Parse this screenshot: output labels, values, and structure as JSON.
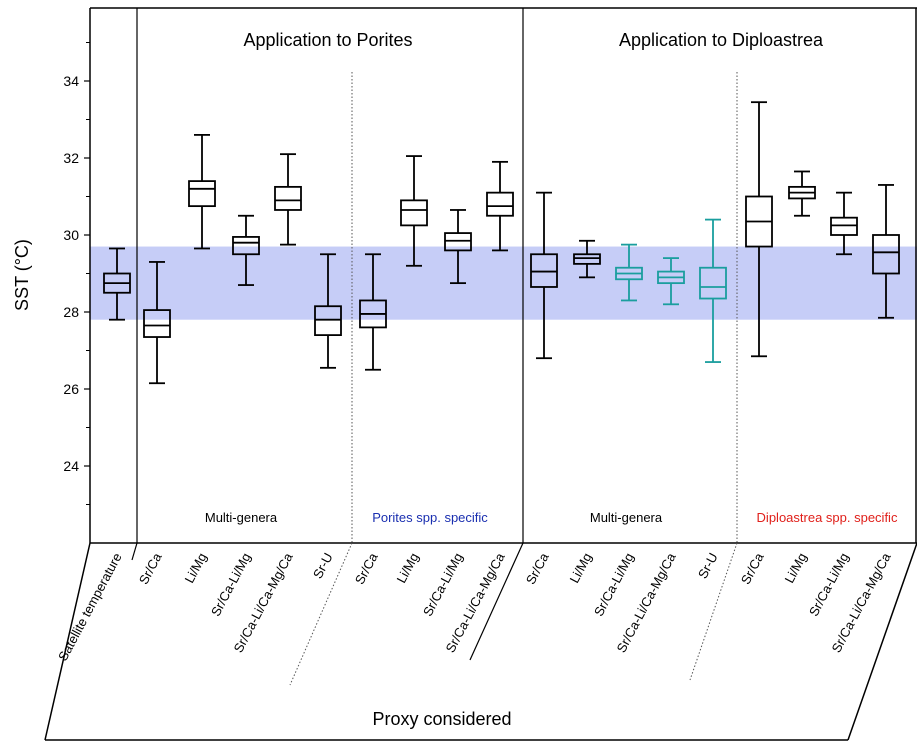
{
  "chart_data": {
    "type": "box",
    "ylabel": "SST (°C)",
    "xlabel": "Proxy considered",
    "ylim": [
      22.5,
      36
    ],
    "yticks": [
      24,
      26,
      28,
      30,
      32,
      34
    ],
    "band": {
      "low": 27.8,
      "high": 29.7,
      "color": "#c6cdf7"
    },
    "section_titles": [
      "Application to  Porites",
      "Application to  Diploastrea"
    ],
    "group_labels": [
      {
        "text": "Multi-genera",
        "color": "#000000"
      },
      {
        "text": "Porites spp. specific",
        "color": "#1a2fb0"
      },
      {
        "text": "Multi-genera",
        "color": "#000000"
      },
      {
        "text": "Diploastrea spp. specific",
        "color": "#e0201b"
      }
    ],
    "categories": [
      "Satellite temperature",
      "Sr/Ca",
      "Li/Mg",
      "Sr/Ca-Li/Mg",
      "Sr/Ca-Li/Ca-Mg/Ca",
      "Sr-U",
      "Sr/Ca",
      "Li/Mg",
      "Sr/Ca-Li/Mg",
      "Sr/Ca-Li/Ca-Mg/Ca",
      "Sr/Ca",
      "Li/Mg",
      "Sr/Ca-Li/Mg",
      "Sr/Ca-Li/Ca-Mg/Ca",
      "Sr-U",
      "Sr/Ca",
      "Li/Mg",
      "Sr/Ca-Li/Mg",
      "Sr/Ca-Li/Ca-Mg/Ca"
    ],
    "boxes": [
      {
        "min": 27.8,
        "q1": 28.5,
        "median": 28.75,
        "q3": 29.0,
        "max": 29.65,
        "color": "#000000"
      },
      {
        "min": 26.15,
        "q1": 27.35,
        "median": 27.65,
        "q3": 28.05,
        "max": 29.3,
        "color": "#000000"
      },
      {
        "min": 29.65,
        "q1": 30.75,
        "median": 31.2,
        "q3": 31.4,
        "max": 32.6,
        "color": "#000000"
      },
      {
        "min": 28.7,
        "q1": 29.5,
        "median": 29.8,
        "q3": 29.95,
        "max": 30.5,
        "color": "#000000"
      },
      {
        "min": 29.75,
        "q1": 30.65,
        "median": 30.9,
        "q3": 31.25,
        "max": 32.1,
        "color": "#000000"
      },
      {
        "min": 26.55,
        "q1": 27.4,
        "median": 27.8,
        "q3": 28.15,
        "max": 29.5,
        "color": "#000000"
      },
      {
        "min": 26.5,
        "q1": 27.6,
        "median": 27.95,
        "q3": 28.3,
        "max": 29.5,
        "color": "#000000"
      },
      {
        "min": 29.2,
        "q1": 30.25,
        "median": 30.65,
        "q3": 30.9,
        "max": 32.05,
        "color": "#000000"
      },
      {
        "min": 28.75,
        "q1": 29.6,
        "median": 29.85,
        "q3": 30.05,
        "max": 30.65,
        "color": "#000000"
      },
      {
        "min": 29.6,
        "q1": 30.5,
        "median": 30.75,
        "q3": 31.1,
        "max": 31.9,
        "color": "#000000"
      },
      {
        "min": 26.8,
        "q1": 28.65,
        "median": 29.05,
        "q3": 29.5,
        "max": 31.1,
        "color": "#000000"
      },
      {
        "min": 28.9,
        "q1": 29.25,
        "median": 29.4,
        "q3": 29.5,
        "max": 29.85,
        "color": "#000000"
      },
      {
        "min": 28.3,
        "q1": 28.85,
        "median": 29.0,
        "q3": 29.15,
        "max": 29.75,
        "color": "#1a9e9e"
      },
      {
        "min": 28.2,
        "q1": 28.75,
        "median": 28.9,
        "q3": 29.05,
        "max": 29.4,
        "color": "#1a9e9e"
      },
      {
        "min": 26.7,
        "q1": 28.35,
        "median": 28.65,
        "q3": 29.15,
        "max": 30.4,
        "color": "#1a9e9e"
      },
      {
        "min": 26.85,
        "q1": 29.7,
        "median": 30.35,
        "q3": 31.0,
        "max": 33.45,
        "color": "#000000"
      },
      {
        "min": 30.5,
        "q1": 30.95,
        "median": 31.1,
        "q3": 31.25,
        "max": 31.65,
        "color": "#000000"
      },
      {
        "min": 29.5,
        "q1": 30.0,
        "median": 30.25,
        "q3": 30.45,
        "max": 31.1,
        "color": "#000000"
      },
      {
        "min": 27.85,
        "q1": 29.0,
        "median": 29.55,
        "q3": 30.0,
        "max": 31.3,
        "color": "#000000"
      }
    ]
  }
}
